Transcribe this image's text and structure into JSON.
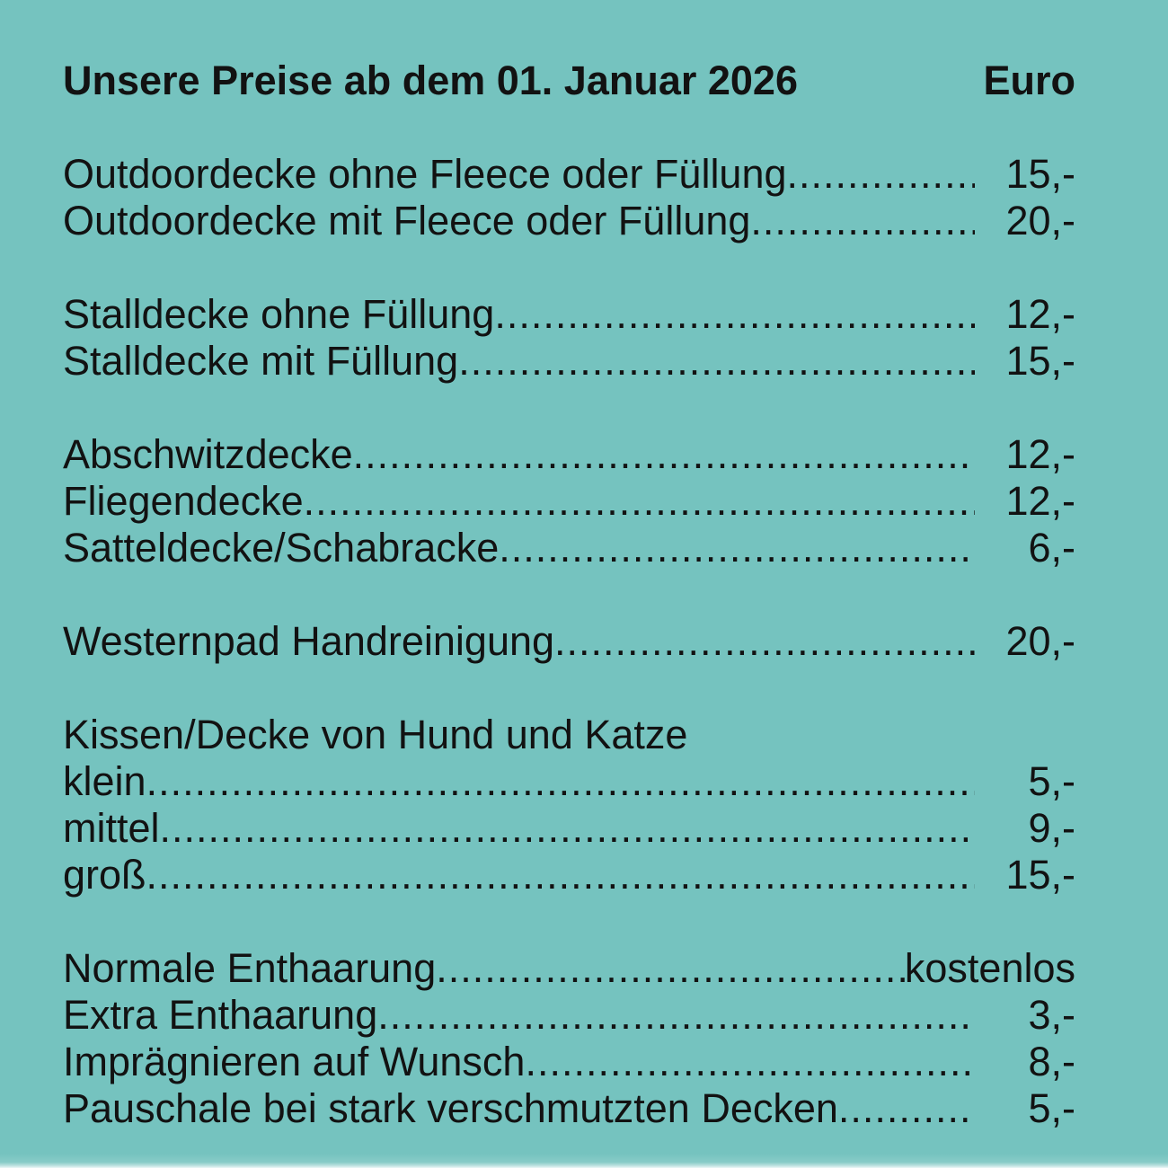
{
  "colors": {
    "background": "#75c3bf",
    "text": "#121212"
  },
  "header": {
    "title": "Unsere Preise ab dem 01. Januar 2026",
    "currency_label": "Euro"
  },
  "price_list": {
    "groups": [
      {
        "items": [
          {
            "label": "Outdoordecke ohne Fleece oder Füllung",
            "price": "15,-"
          },
          {
            "label": "Outdoordecke mit Fleece oder Füllung",
            "price": "20,-"
          }
        ]
      },
      {
        "items": [
          {
            "label": "Stalldecke ohne Füllung",
            "price": "12,-"
          },
          {
            "label": "Stalldecke mit Füllung",
            "price": "15,-"
          }
        ]
      },
      {
        "items": [
          {
            "label": "Abschwitzdecke",
            "price": "12,-"
          },
          {
            "label": "Fliegendecke",
            "price": "12,-"
          },
          {
            "label": "Satteldecke/Schabracke",
            "price": "6,-"
          }
        ]
      },
      {
        "items": [
          {
            "label": "Westernpad Handreinigung",
            "price": "20,-"
          }
        ]
      },
      {
        "heading": "Kissen/Decke von Hund und Katze",
        "items": [
          {
            "label": "klein",
            "price": "5,-"
          },
          {
            "label": "mittel",
            "price": "9,-"
          },
          {
            "label": "groß",
            "price": "15,-"
          }
        ]
      },
      {
        "items": [
          {
            "label": "Normale Enthaarung",
            "price": "kostenlos"
          },
          {
            "label": "Extra Enthaarung",
            "price": "3,-"
          },
          {
            "label": "Imprägnieren auf Wunsch",
            "price": "8,-"
          },
          {
            "label": "Pauschale bei stark verschmutzten Decken",
            "price": "5,-"
          }
        ]
      }
    ]
  }
}
